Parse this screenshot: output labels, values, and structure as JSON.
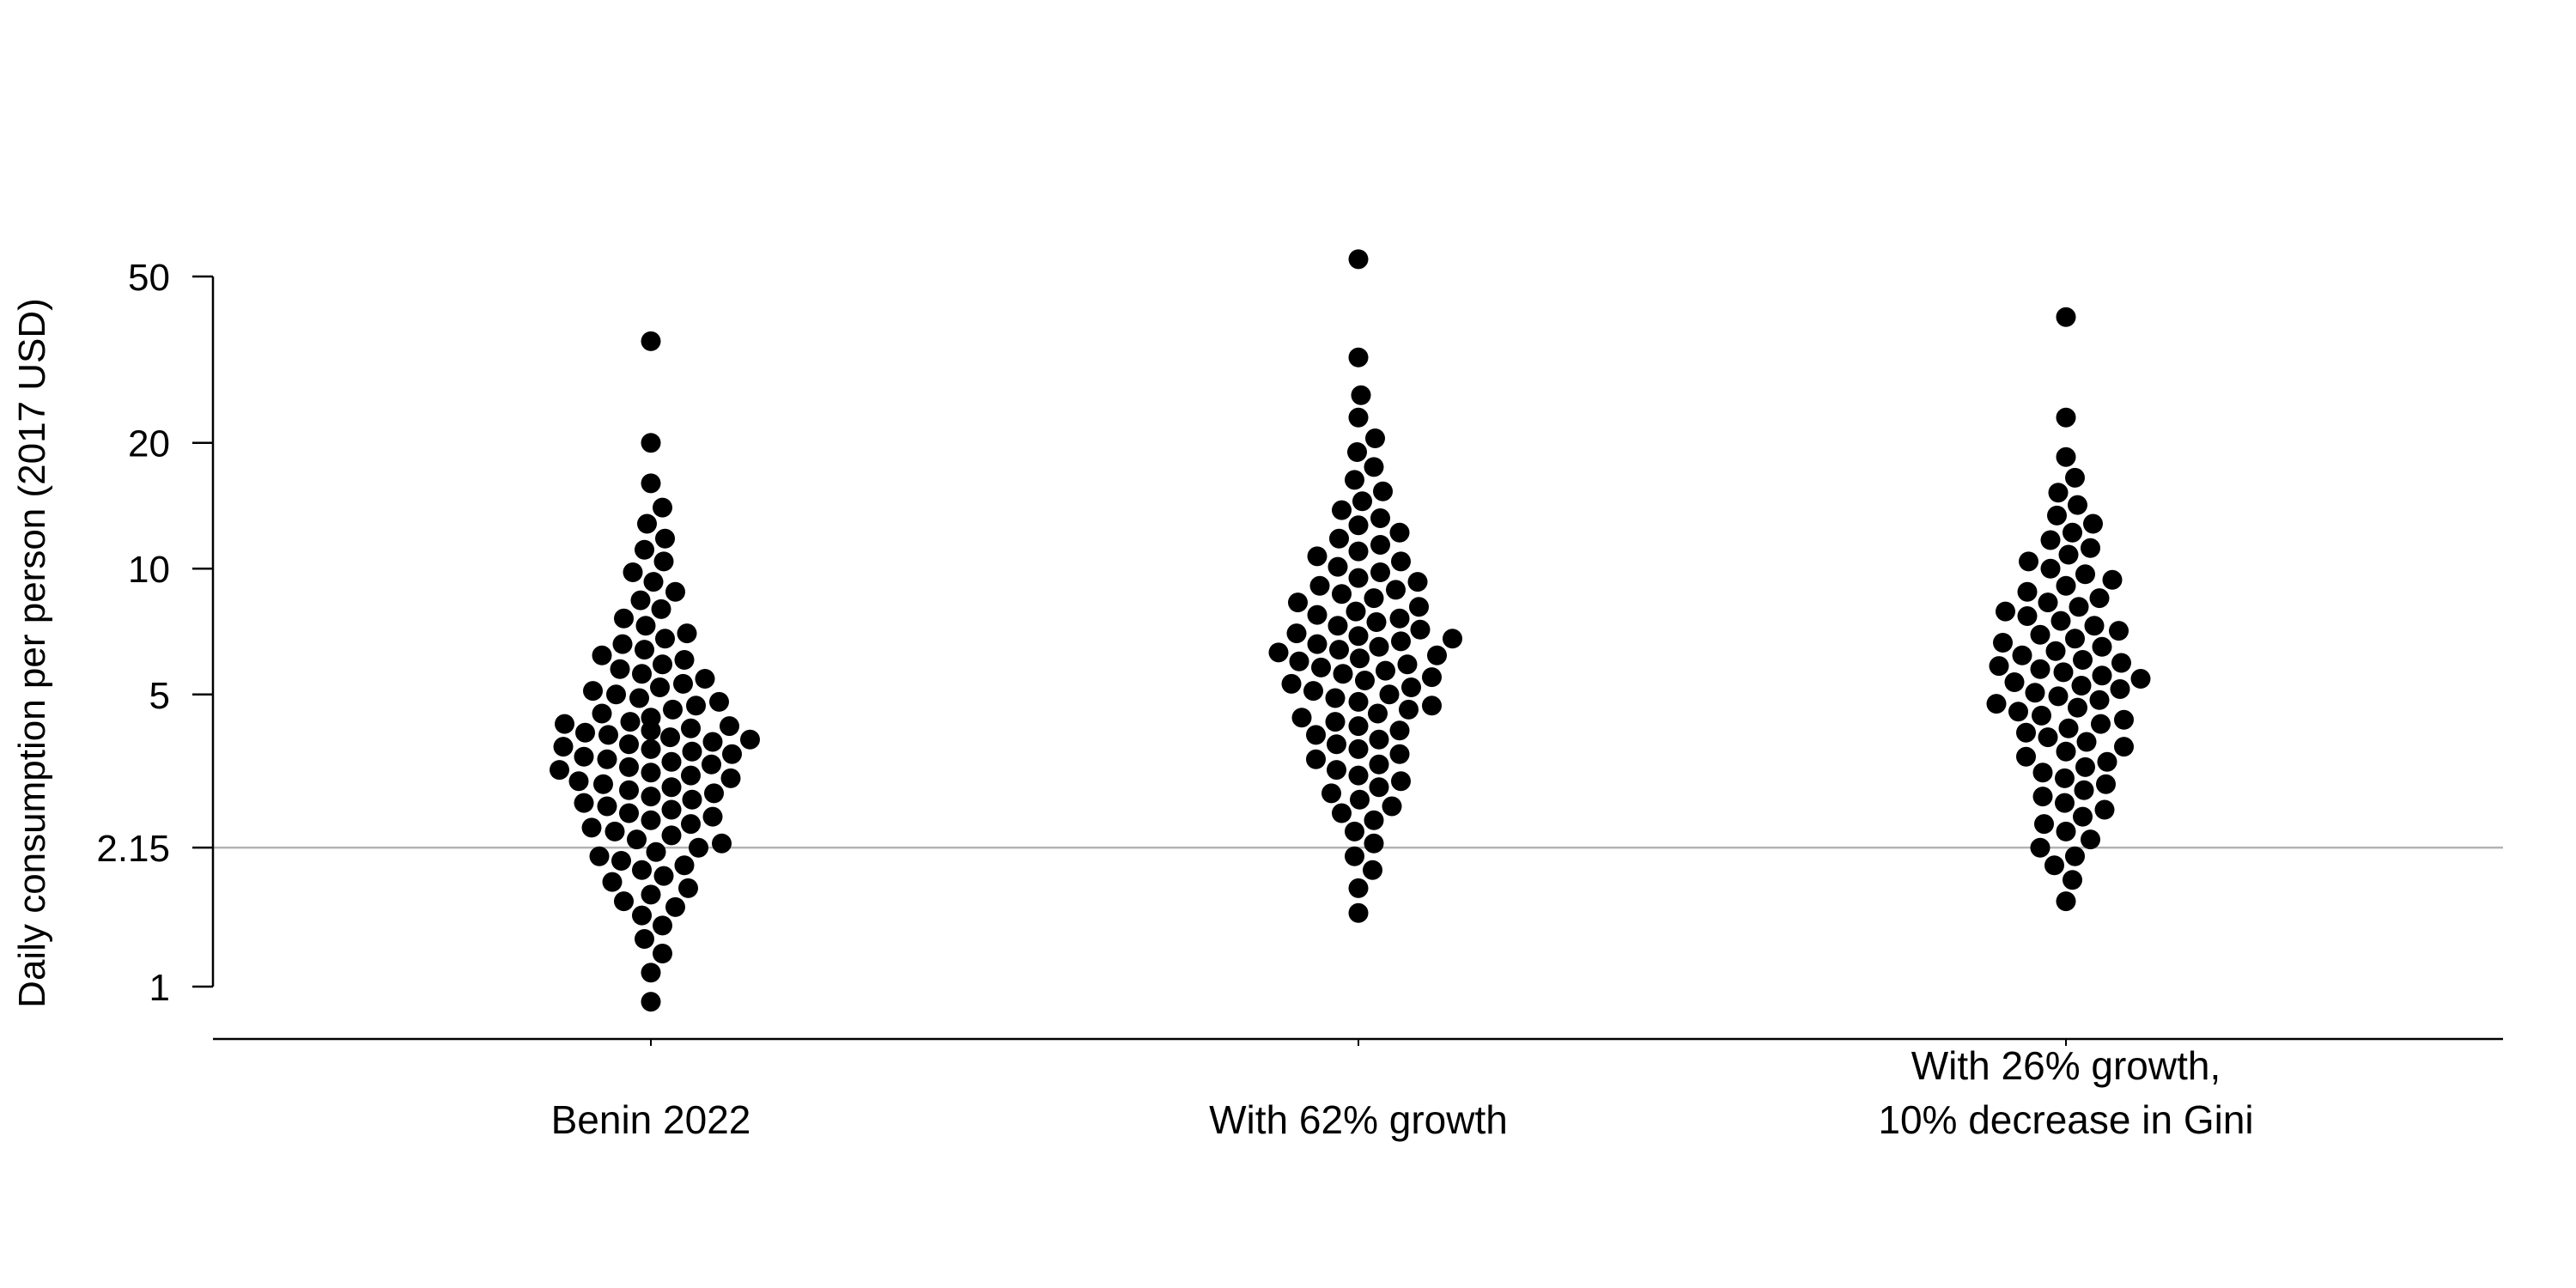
{
  "chart_data": {
    "type": "scatter",
    "subtype": "beeswarm",
    "title": "",
    "ylabel": "Daily consumption per person (2017 USD)",
    "xlabel": "",
    "y_scale": "log",
    "ylim": [
      0.8,
      58
    ],
    "yticks": [
      {
        "value": 1,
        "label": "1"
      },
      {
        "value": 2.15,
        "label": "2.15"
      },
      {
        "value": 5,
        "label": "5"
      },
      {
        "value": 10,
        "label": "10"
      },
      {
        "value": 20,
        "label": "20"
      },
      {
        "value": 50,
        "label": "50"
      }
    ],
    "reference_line": {
      "value": 2.15,
      "color": "#b3b3b3"
    },
    "point_color": "#000000",
    "grid": false,
    "legend": "none",
    "categories": [
      {
        "lines": [
          "Benin 2022"
        ]
      },
      {
        "lines": [
          "With 62% growth"
        ]
      },
      {
        "lines": [
          "With 26% growth,",
          "10% decrease in Gini"
        ]
      }
    ],
    "series": [
      {
        "values": [
          0.92,
          1.08,
          1.2,
          1.3,
          1.4,
          1.48,
          1.55,
          1.6,
          1.66,
          1.72,
          1.78,
          1.84,
          1.9,
          1.95,
          2.0,
          2.05,
          2.1,
          2.15,
          2.2,
          2.25,
          2.3,
          2.35,
          2.4,
          2.45,
          2.5,
          2.55,
          2.6,
          2.65,
          2.7,
          2.75,
          2.8,
          2.85,
          2.9,
          2.95,
          3.0,
          3.05,
          3.1,
          3.15,
          3.2,
          3.25,
          3.3,
          3.35,
          3.4,
          3.45,
          3.5,
          3.55,
          3.6,
          3.65,
          3.7,
          3.75,
          3.8,
          3.85,
          3.9,
          3.95,
          4.0,
          4.05,
          4.1,
          4.15,
          4.2,
          4.25,
          4.3,
          4.4,
          4.5,
          4.6,
          4.7,
          4.8,
          4.9,
          5.0,
          5.1,
          5.2,
          5.3,
          5.45,
          5.6,
          5.75,
          5.9,
          6.05,
          6.2,
          6.4,
          6.6,
          6.8,
          7.0,
          7.3,
          7.6,
          8.0,
          8.4,
          8.8,
          9.3,
          9.8,
          10.4,
          11.1,
          11.8,
          12.8,
          14.0,
          16.0,
          20.0,
          35.0
        ]
      },
      {
        "values": [
          1.5,
          1.72,
          1.9,
          2.05,
          2.2,
          2.35,
          2.5,
          2.6,
          2.7,
          2.8,
          2.9,
          3.0,
          3.1,
          3.2,
          3.3,
          3.4,
          3.5,
          3.6,
          3.7,
          3.8,
          3.9,
          4.0,
          4.1,
          4.2,
          4.3,
          4.4,
          4.5,
          4.6,
          4.7,
          4.8,
          4.9,
          5.0,
          5.1,
          5.2,
          5.3,
          5.4,
          5.5,
          5.6,
          5.7,
          5.8,
          5.9,
          6.0,
          6.1,
          6.2,
          6.3,
          6.4,
          6.5,
          6.6,
          6.7,
          6.8,
          6.9,
          7.0,
          7.15,
          7.3,
          7.45,
          7.6,
          7.75,
          7.9,
          8.1,
          8.3,
          8.5,
          8.7,
          8.9,
          9.1,
          9.3,
          9.5,
          9.8,
          10.1,
          10.4,
          10.7,
          11.0,
          11.4,
          11.8,
          12.2,
          12.7,
          13.2,
          13.8,
          14.5,
          15.3,
          16.3,
          17.5,
          19.0,
          20.5,
          23.0,
          26.0,
          32.0,
          55.0
        ]
      },
      {
        "values": [
          1.6,
          1.8,
          1.95,
          2.05,
          2.15,
          2.25,
          2.35,
          2.45,
          2.55,
          2.65,
          2.75,
          2.85,
          2.95,
          3.05,
          3.15,
          3.25,
          3.35,
          3.45,
          3.55,
          3.65,
          3.75,
          3.85,
          3.95,
          4.05,
          4.15,
          4.25,
          4.35,
          4.45,
          4.55,
          4.65,
          4.75,
          4.85,
          4.95,
          5.05,
          5.15,
          5.25,
          5.35,
          5.45,
          5.55,
          5.65,
          5.75,
          5.85,
          5.95,
          6.05,
          6.2,
          6.35,
          6.5,
          6.65,
          6.8,
          6.95,
          7.1,
          7.3,
          7.5,
          7.7,
          7.9,
          8.1,
          8.3,
          8.5,
          8.8,
          9.1,
          9.4,
          9.7,
          10.0,
          10.4,
          10.8,
          11.2,
          11.7,
          12.2,
          12.8,
          13.4,
          14.2,
          15.2,
          16.5,
          18.5,
          23.0,
          40.0
        ]
      }
    ]
  }
}
